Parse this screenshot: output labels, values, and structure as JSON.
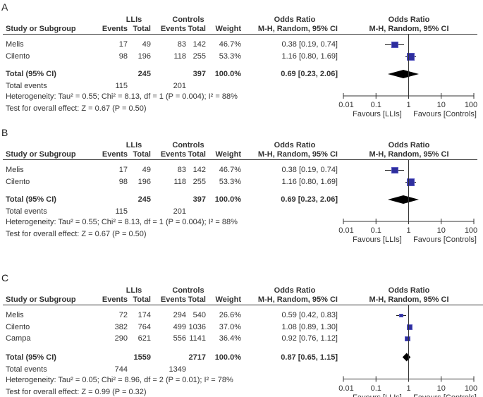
{
  "chart_data": [
    {
      "type": "forest",
      "panel_label": "A",
      "group_headers": {
        "experimental": "LLIs",
        "control": "Controls",
        "or_text": "Odds Ratio",
        "or_plot": "Odds Ratio"
      },
      "column_headers": {
        "study": "Study or Subgroup",
        "events1": "Events",
        "total1": "Total",
        "events2": "Events",
        "total2": "Total",
        "weight": "Weight",
        "method_text": "M-H, Random, 95% CI",
        "method_plot": "M-H, Random, 95% CI"
      },
      "studies": [
        {
          "name": "Melis",
          "events1": "17",
          "total1": "49",
          "events2": "83",
          "total2": "142",
          "weight": "46.7%",
          "or_text": "0.38 [0.19, 0.74]",
          "or": 0.38,
          "lo": 0.19,
          "hi": 0.74,
          "w": 46.7
        },
        {
          "name": "Cilento",
          "events1": "98",
          "total1": "196",
          "events2": "118",
          "total2": "255",
          "weight": "53.3%",
          "or_text": "1.16 [0.80, 1.69]",
          "or": 1.16,
          "lo": 0.8,
          "hi": 1.69,
          "w": 53.3
        }
      ],
      "total": {
        "label": "Total (95% CI)",
        "total1": "245",
        "total2": "397",
        "weight": "100.0%",
        "or_text": "0.69 [0.23, 2.06]",
        "or": 0.69,
        "lo": 0.23,
        "hi": 2.06
      },
      "total_events": {
        "label": "Total events",
        "events1": "115",
        "events2": "201"
      },
      "heterogeneity": "Heterogeneity: Tau² = 0.55; Chi² = 8.13, df = 1 (P = 0.004); I² = 88%",
      "overall_effect": "Test for overall effect: Z = 0.67 (P = 0.50)",
      "x_axis": {
        "scale": "log",
        "range": [
          0.01,
          100
        ],
        "ticks": [
          0.01,
          0.1,
          1,
          10,
          100
        ],
        "tick_labels": [
          "0.01",
          "0.1",
          "1",
          "10",
          "100"
        ]
      },
      "favours_left": "Favours [LLIs]",
      "favours_right": "Favours [Controls]"
    },
    {
      "type": "forest",
      "panel_label": "B",
      "group_headers": {
        "experimental": "LLIs",
        "control": "Controls",
        "or_text": "Odds Ratio",
        "or_plot": "Odds Ratio"
      },
      "column_headers": {
        "study": "Study or Subgroup",
        "events1": "Events",
        "total1": "Total",
        "events2": "Events",
        "total2": "Total",
        "weight": "Weight",
        "method_text": "M-H, Random, 95% CI",
        "method_plot": "M-H, Random, 95% CI"
      },
      "studies": [
        {
          "name": "Melis",
          "events1": "17",
          "total1": "49",
          "events2": "83",
          "total2": "142",
          "weight": "46.7%",
          "or_text": "0.38 [0.19, 0.74]",
          "or": 0.38,
          "lo": 0.19,
          "hi": 0.74,
          "w": 46.7
        },
        {
          "name": "Cilento",
          "events1": "98",
          "total1": "196",
          "events2": "118",
          "total2": "255",
          "weight": "53.3%",
          "or_text": "1.16 [0.80, 1.69]",
          "or": 1.16,
          "lo": 0.8,
          "hi": 1.69,
          "w": 53.3
        }
      ],
      "total": {
        "label": "Total (95% CI)",
        "total1": "245",
        "total2": "397",
        "weight": "100.0%",
        "or_text": "0.69 [0.23, 2.06]",
        "or": 0.69,
        "lo": 0.23,
        "hi": 2.06
      },
      "total_events": {
        "label": "Total events",
        "events1": "115",
        "events2": "201"
      },
      "heterogeneity": "Heterogeneity: Tau² = 0.55; Chi² = 8.13, df = 1 (P = 0.004); I² = 88%",
      "overall_effect": "Test for overall effect: Z = 0.67 (P = 0.50)",
      "x_axis": {
        "scale": "log",
        "range": [
          0.01,
          100
        ],
        "ticks": [
          0.01,
          0.1,
          1,
          10,
          100
        ],
        "tick_labels": [
          "0.01",
          "0.1",
          "1",
          "10",
          "100"
        ]
      },
      "favours_left": "Favours [LLIs]",
      "favours_right": "Favours [Controls]"
    },
    {
      "type": "forest",
      "panel_label": "C",
      "group_headers": {
        "experimental": "LLIs",
        "control": "Controls",
        "or_text": "Odds Ratio",
        "or_plot": "Odds Ratio"
      },
      "column_headers": {
        "study": "Study or Subgroup",
        "events1": "Events",
        "total1": "Total",
        "events2": "Events",
        "total2": "Total",
        "weight": "Weight",
        "method_text": "M-H, Random, 95% CI",
        "method_plot": "M-H, Random, 95% CI"
      },
      "studies": [
        {
          "name": "Melis",
          "events1": "72",
          "total1": "174",
          "events2": "294",
          "total2": "540",
          "weight": "26.6%",
          "or_text": "0.59 [0.42, 0.83]",
          "or": 0.59,
          "lo": 0.42,
          "hi": 0.83,
          "w": 26.6
        },
        {
          "name": "Cilento",
          "events1": "382",
          "total1": "764",
          "events2": "499",
          "total2": "1036",
          "weight": "37.0%",
          "or_text": "1.08 [0.89, 1.30]",
          "or": 1.08,
          "lo": 0.89,
          "hi": 1.3,
          "w": 37.0
        },
        {
          "name": "Campa",
          "events1": "290",
          "total1": "621",
          "events2": "556",
          "total2": "1141",
          "weight": "36.4%",
          "or_text": "0.92 [0.76, 1.12]",
          "or": 0.92,
          "lo": 0.76,
          "hi": 1.12,
          "w": 36.4
        }
      ],
      "total": {
        "label": "Total (95% CI)",
        "total1": "1559",
        "total2": "2717",
        "weight": "100.0%",
        "or_text": "0.87 [0.65, 1.15]",
        "or": 0.87,
        "lo": 0.65,
        "hi": 1.15
      },
      "total_events": {
        "label": "Total events",
        "events1": "744",
        "events2": "1349"
      },
      "heterogeneity": "Heterogeneity: Tau² = 0.05; Chi² = 8.96, df = 2 (P = 0.01); I² = 78%",
      "overall_effect": "Test for overall effect: Z = 0.99 (P = 0.32)",
      "x_axis": {
        "scale": "log",
        "range": [
          0.01,
          100
        ],
        "ticks": [
          0.01,
          0.1,
          1,
          10,
          100
        ],
        "tick_labels": [
          "0.01",
          "0.1",
          "1",
          "10",
          "100"
        ]
      },
      "favours_left": "Favours [LLIs]",
      "favours_right": "Favours [Controls]"
    }
  ]
}
